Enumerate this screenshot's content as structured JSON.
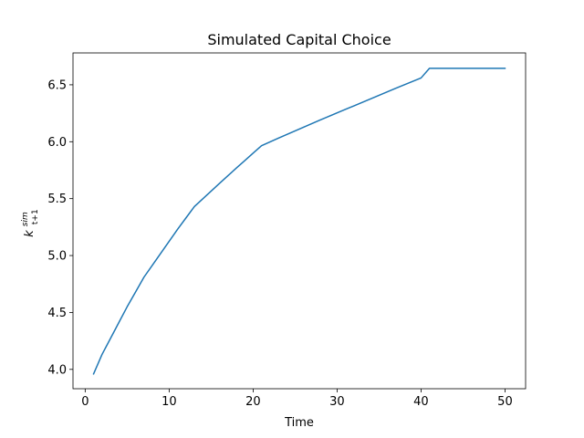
{
  "chart_data": {
    "type": "line",
    "title": "Simulated Capital Choice",
    "xlabel": "Time",
    "ylabel": {
      "base": "k",
      "superscript": "sim",
      "subscript": "t+1"
    },
    "xlim": [
      -1.45,
      52.45
    ],
    "ylim": [
      3.83,
      6.78
    ],
    "xticks": [
      0,
      10,
      20,
      30,
      40,
      50
    ],
    "xtick_labels": [
      "0",
      "10",
      "20",
      "30",
      "40",
      "50"
    ],
    "yticks": [
      4.0,
      4.5,
      5.0,
      5.5,
      6.0,
      6.5
    ],
    "ytick_labels": [
      "4.0",
      "4.5",
      "5.0",
      "5.5",
      "6.0",
      "6.5"
    ],
    "grid": false,
    "legend": "none",
    "series": [
      {
        "color": "#1f77b4",
        "x": [
          1,
          2,
          3,
          4,
          5,
          6,
          7,
          8,
          9,
          10,
          11,
          12,
          13,
          14,
          15,
          16,
          17,
          18,
          19,
          20,
          21,
          22,
          23,
          24,
          25,
          26,
          27,
          28,
          29,
          30,
          31,
          32,
          33,
          34,
          35,
          36,
          37,
          38,
          39,
          40,
          41,
          42,
          43,
          44,
          45,
          46,
          47,
          48,
          49,
          50
        ],
        "y": [
          3.96,
          4.13,
          4.27,
          4.41,
          4.55,
          4.68,
          4.81,
          4.915,
          5.02,
          5.125,
          5.23,
          5.33,
          5.43,
          5.498,
          5.566,
          5.634,
          5.701,
          5.768,
          5.834,
          5.9,
          5.965,
          5.998,
          6.031,
          6.063,
          6.095,
          6.127,
          6.159,
          6.191,
          6.222,
          6.253,
          6.284,
          6.315,
          6.346,
          6.377,
          6.408,
          6.439,
          6.47,
          6.5,
          6.53,
          6.56,
          6.645,
          6.645,
          6.645,
          6.645,
          6.645,
          6.645,
          6.645,
          6.645,
          6.645,
          6.645
        ]
      }
    ]
  }
}
